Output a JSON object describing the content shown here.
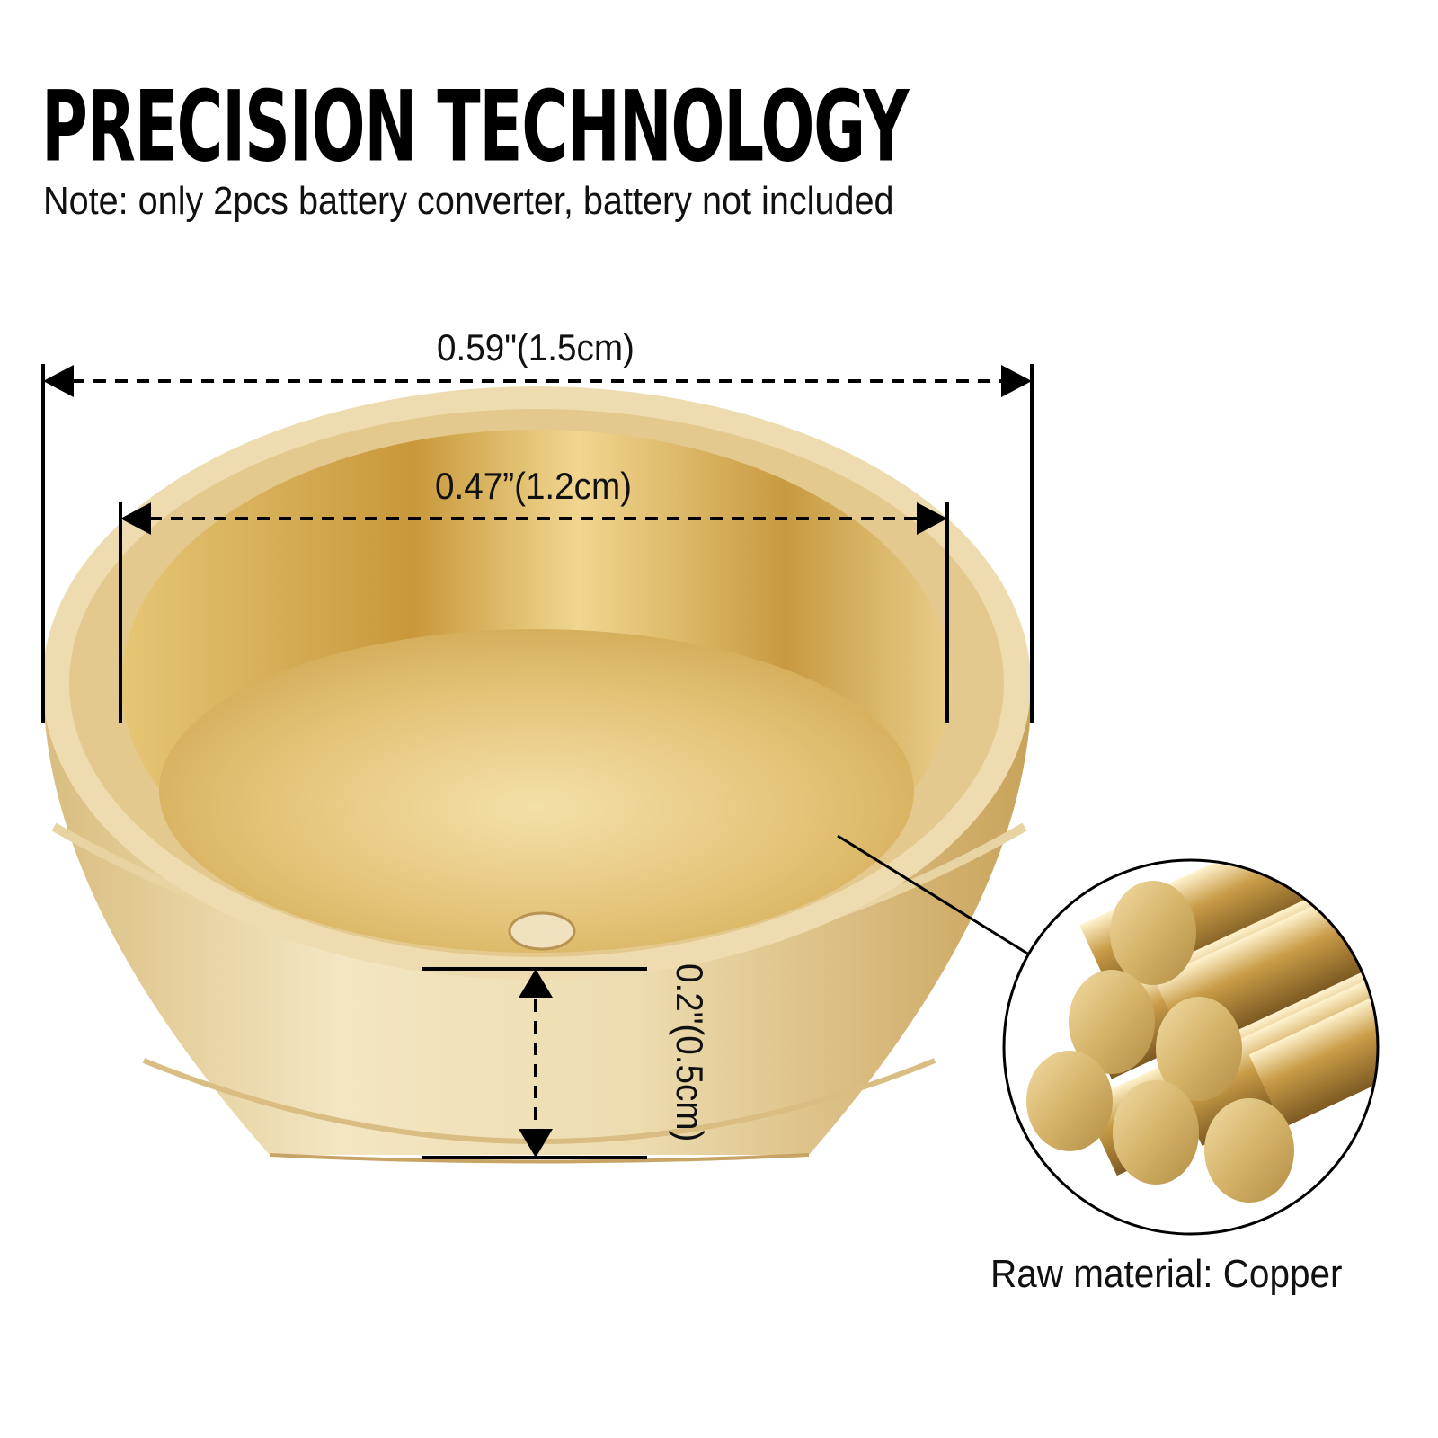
{
  "header": {
    "title": "PRECISION TECHNOLOGY",
    "note": "Note: only 2pcs battery converter, battery not included"
  },
  "dimensions": {
    "outer_diameter": "0.59\"(1.5cm)",
    "inner_diameter": "0.47”(1.2cm)",
    "height": "0.2\"(0.5cm)"
  },
  "material": {
    "label": "Raw material: Copper"
  },
  "colors": {
    "gold_light": "#f3e2b4",
    "gold_mid": "#dcb76a",
    "gold_dark": "#b8903e"
  }
}
